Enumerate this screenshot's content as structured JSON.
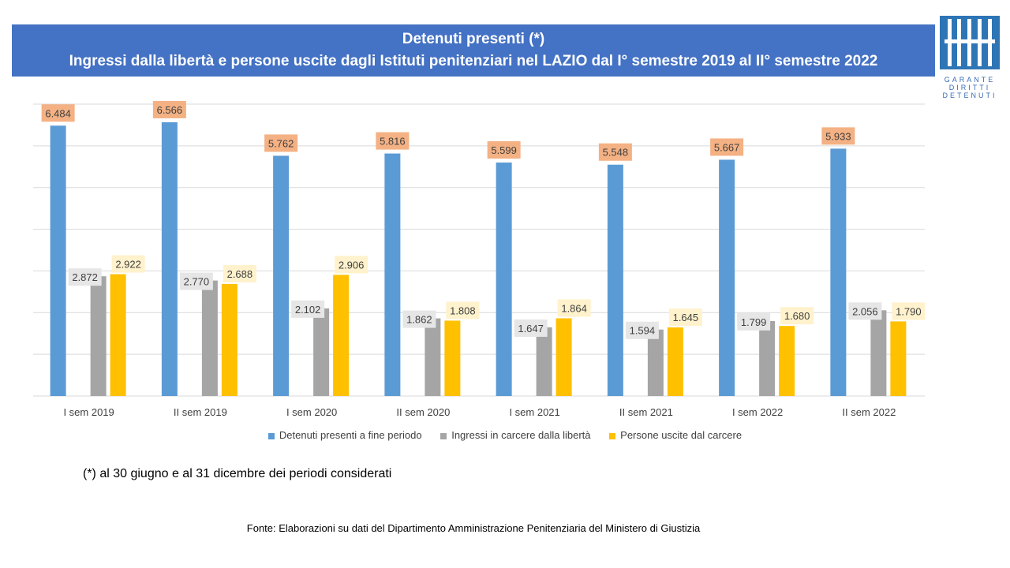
{
  "header": {
    "title_line1": "Detenuti presenti (*)",
    "title_line2": "Ingressi dalla libertà e persone uscite dagli Istituti penitenziari nel  LAZIO dal I° semestre 2019 al II° semestre 2022"
  },
  "logo": {
    "line1": "GARANTE",
    "line2": "DIRITTI",
    "line3": "DETENUTI"
  },
  "chart_data": {
    "type": "bar",
    "categories": [
      "I sem 2019",
      "II sem 2019",
      "I sem 2020",
      "II sem 2020",
      "I sem 2021",
      "II sem 2021",
      "I sem 2022",
      "II sem 2022"
    ],
    "series": [
      {
        "name": "Detenuti presenti a fine periodo",
        "values": [
          6484,
          6566,
          5762,
          5816,
          5599,
          5548,
          5667,
          5933
        ],
        "labels": [
          "6.484",
          "6.566",
          "5.762",
          "5.816",
          "5.599",
          "5.548",
          "5.667",
          "5.933"
        ],
        "color": "#5b9bd5",
        "label_bg": "#f4b183"
      },
      {
        "name": "Ingressi in carcere dalla libertà",
        "values": [
          2872,
          2770,
          2102,
          1862,
          1647,
          1594,
          1799,
          2056
        ],
        "labels": [
          "2.872",
          "2.770",
          "2.102",
          "1.862",
          "1.647",
          "1.594",
          "1.799",
          "2.056"
        ],
        "color": "#a5a5a5",
        "label_bg": "#e7e6e6"
      },
      {
        "name": "Persone uscite dal carcere",
        "values": [
          2922,
          2688,
          2906,
          1808,
          1864,
          1645,
          1680,
          1790
        ],
        "labels": [
          "2.922",
          "2.688",
          "2.906",
          "1.808",
          "1.864",
          "1.645",
          "1.680",
          "1.790"
        ],
        "color": "#ffc000",
        "label_bg": "#fff2cc"
      }
    ],
    "ylim": [
      0,
      7000
    ],
    "grid": true,
    "legend_position": "bottom"
  },
  "footer": {
    "note": "(*) al 30 giugno e al 31 dicembre dei periodi considerati",
    "source": "Fonte: Elaborazioni su dati del Dipartimento  Amministrazione Penitenziaria del  Ministero di Giustizia"
  }
}
